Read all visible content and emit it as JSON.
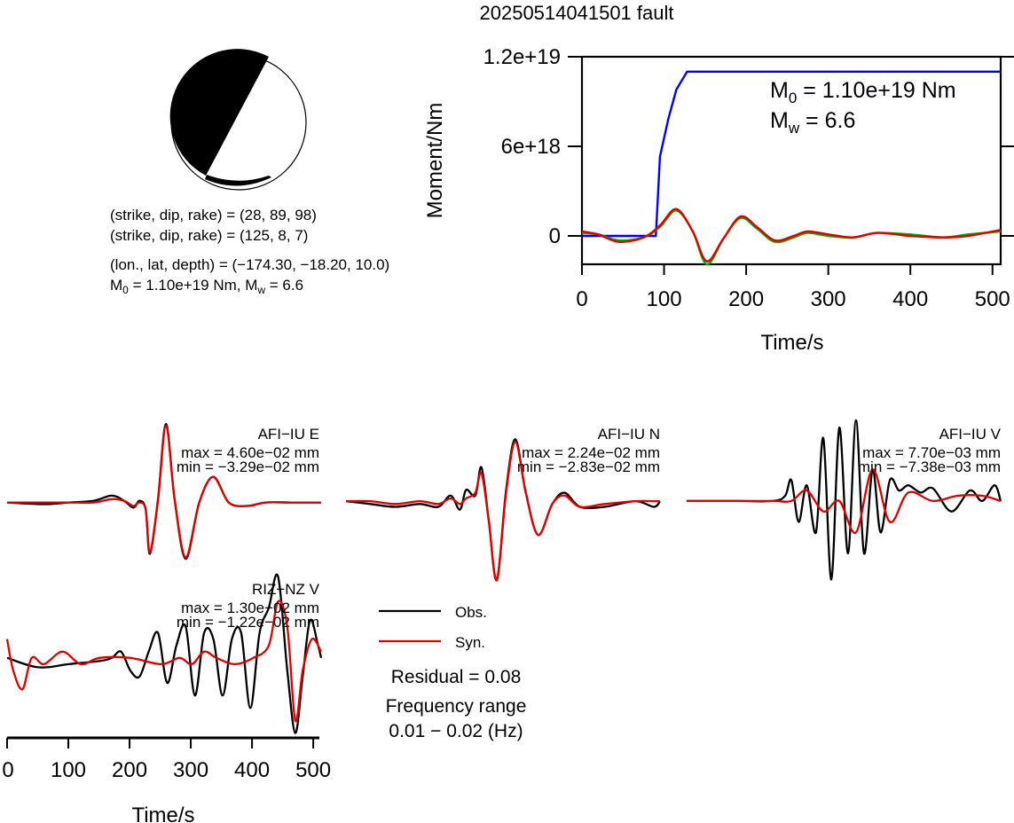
{
  "title": "20250514041501 fault",
  "colors": {
    "observed": "#000000",
    "synthetic": "#e00000",
    "moment_cumulative": "#0000ff",
    "moment_rate_alt": "#00b000",
    "mechanism_fill": "#000000",
    "mechanism_bg": "#ffffff"
  },
  "focal_mechanism": {
    "plane1": "(strike, dip, rake) = (28, 89, 98)",
    "plane2": "(strike, dip, rake) = (125, 8, 7)",
    "location": "(lon., lat, depth) = (−174.30, −18.20, 10.0)",
    "moment_prefix": "M",
    "moment_sub": "0",
    "moment_value": " = 1.10e+19 Nm, M",
    "mw_sub": "w",
    "mw_value": " = 6.6"
  },
  "moment_panel": {
    "ylabel": "Moment/Nm",
    "xlabel": "Time/s",
    "m0_prefix": "M",
    "m0_sub": "0",
    "m0_value": " = 1.10e+19 Nm",
    "mw_prefix": "M",
    "mw_sub": "w",
    "mw_value": " = 6.6",
    "y_ticks": [
      "1.2e+19",
      "6e+18",
      "0"
    ],
    "x_ticks": [
      "0",
      "100",
      "200",
      "300",
      "400",
      "500"
    ]
  },
  "waveform_panels": {
    "xlabel": "Time/s",
    "x_ticks": [
      "0",
      "100",
      "200",
      "300",
      "400",
      "500"
    ]
  },
  "legend": {
    "obs": "Obs.",
    "syn": "Syn.",
    "residual": "Residual = 0.08",
    "freq_label": "Frequency range",
    "freq_value": "0.01 − 0.02 (Hz)"
  },
  "chart_data": [
    {
      "type": "line",
      "panel": "moment",
      "xlabel": "Time/s",
      "ylabel": "Moment/Nm",
      "xlim": [
        0,
        510
      ],
      "ylim": [
        -1.9e+18,
        1.21e+19
      ],
      "series": [
        {
          "role": "cumulative moment",
          "color": "#0000ff",
          "x": [
            0,
            90,
            95,
            105,
            115,
            128,
            510
          ],
          "y": [
            0,
            0,
            5.3e+18,
            7.8e+18,
            9.8e+18,
            1.1e+19,
            1.1e+19
          ]
        },
        {
          "role": "moment rate (alt)",
          "color": "#00b000",
          "x": [
            0,
            20,
            45,
            75,
            95,
            115,
            135,
            152,
            172,
            193,
            213,
            235,
            258,
            275,
            300,
            330,
            360,
            400,
            440,
            470,
            510
          ],
          "y": [
            2e+17,
            1e+17,
            -3e+17,
            -1e+17,
            6e+17,
            1.7e+18,
            3e+17,
            -1.9e+18,
            -2e+17,
            1.2e+18,
            5e+17,
            -4e+17,
            -1e+17,
            2e+17,
            0,
            -1e+17,
            2e+17,
            1e+17,
            -1e+17,
            1e+17,
            3e+17
          ]
        },
        {
          "role": "moment rate",
          "color": "#e00000",
          "x": [
            0,
            20,
            45,
            75,
            95,
            115,
            135,
            152,
            172,
            193,
            213,
            235,
            258,
            275,
            300,
            330,
            360,
            400,
            440,
            470,
            510
          ],
          "y": [
            3e+17,
            1e+17,
            -4e+17,
            -1e+17,
            7e+17,
            1.8e+18,
            3e+17,
            -1.7e+18,
            -2e+17,
            1.3e+18,
            6e+17,
            -3e+17,
            0,
            3e+17,
            1e+17,
            -1e+17,
            2e+17,
            0,
            -1e+17,
            0,
            4e+17
          ]
        }
      ]
    },
    {
      "type": "line",
      "panel": "AFI-IU E",
      "station": "AFI−IU E",
      "max": "max = 4.60e−02 mm",
      "min": "min = −3.29e−02 mm",
      "xlim": [
        0,
        510
      ],
      "ylim": [
        -0.0329,
        0.046
      ],
      "series": [
        {
          "name": "Obs.",
          "x": [
            0,
            60,
            100,
            140,
            170,
            190,
            205,
            215,
            225,
            232,
            245,
            258,
            272,
            290,
            312,
            335,
            360,
            390,
            420,
            460,
            510
          ],
          "y": [
            0,
            -0.001,
            0,
            0.001,
            0.004,
            0.001,
            -0.003,
            0.001,
            -0.004,
            -0.03,
            0.002,
            0.046,
            0.002,
            -0.033,
            0,
            0.015,
            0,
            -0.002,
            0,
            0,
            0
          ]
        },
        {
          "name": "Syn.",
          "x": [
            0,
            60,
            100,
            140,
            170,
            190,
            205,
            215,
            225,
            232,
            245,
            258,
            272,
            290,
            312,
            335,
            360,
            390,
            420,
            460,
            510
          ],
          "y": [
            0,
            0,
            0,
            0,
            0.002,
            0.001,
            -0.002,
            0,
            -0.004,
            -0.029,
            0.001,
            0.045,
            0.002,
            -0.032,
            0,
            0.015,
            0,
            -0.002,
            0,
            0,
            0
          ]
        }
      ]
    },
    {
      "type": "line",
      "panel": "AFI-IU N",
      "station": "AFI−IU N",
      "max": "max = 2.24e−02 mm",
      "min": "min = −2.83e−02 mm",
      "xlim": [
        0,
        510
      ],
      "ylim": [
        -0.0283,
        0.0224
      ],
      "series": [
        {
          "name": "Obs.",
          "x": [
            0,
            40,
            80,
            120,
            150,
            170,
            185,
            195,
            210,
            220,
            232,
            245,
            260,
            275,
            292,
            312,
            335,
            355,
            380,
            420,
            470,
            500,
            510
          ],
          "y": [
            0,
            -0.001,
            -0.002,
            -0.001,
            -0.002,
            0.002,
            -0.003,
            0.004,
            0.002,
            0.012,
            -0.007,
            -0.028,
            0.004,
            0.022,
            0.003,
            -0.012,
            -0.001,
            0.003,
            -0.002,
            -0.002,
            0,
            -0.002,
            0
          ]
        },
        {
          "name": "Syn.",
          "x": [
            0,
            40,
            80,
            120,
            150,
            170,
            185,
            195,
            210,
            220,
            232,
            245,
            260,
            275,
            292,
            312,
            335,
            355,
            380,
            420,
            470,
            500,
            510
          ],
          "y": [
            0,
            0,
            -0.001,
            0,
            -0.001,
            0.001,
            -0.001,
            0.001,
            0.003,
            0.01,
            -0.007,
            -0.028,
            0.003,
            0.021,
            0.003,
            -0.012,
            -0.001,
            0.002,
            -0.002,
            -0.001,
            0,
            0,
            0
          ]
        }
      ]
    },
    {
      "type": "line",
      "panel": "AFI-IU V",
      "station": "AFI−IU V",
      "max": "max = 7.70e−03 mm",
      "min": "min = −7.38e−03 mm",
      "xlim": [
        0,
        510
      ],
      "ylim": [
        -0.00738,
        0.0077
      ],
      "series": [
        {
          "name": "Obs.",
          "x": [
            0,
            80,
            140,
            160,
            170,
            182,
            195,
            210,
            222,
            235,
            248,
            262,
            275,
            288,
            302,
            315,
            330,
            345,
            360,
            380,
            400,
            430,
            460,
            480,
            500,
            510
          ],
          "y": [
            0,
            0,
            0,
            0.0005,
            0.002,
            -0.002,
            0.0015,
            -0.003,
            0.006,
            -0.0075,
            0.007,
            -0.005,
            0.0077,
            -0.005,
            0.003,
            -0.003,
            0.002,
            0.001,
            0.0015,
            0.0008,
            0.0012,
            -0.001,
            0.001,
            0,
            0.0015,
            0
          ]
        },
        {
          "name": "Syn.",
          "x": [
            0,
            80,
            140,
            170,
            195,
            222,
            248,
            275,
            302,
            330,
            360,
            400,
            440,
            480,
            510
          ],
          "y": [
            0,
            0,
            0,
            0,
            0.001,
            -0.001,
            0,
            -0.003,
            0.003,
            -0.002,
            0.0008,
            0,
            0.0005,
            0.0005,
            0
          ]
        }
      ]
    },
    {
      "type": "line",
      "panel": "RIZ-NZ V",
      "station": "RIZ−NZ V",
      "max": "max = 1.30e−02 mm",
      "min": "min = −1.22e−02 mm",
      "xlim": [
        0,
        510
      ],
      "ylim": [
        -0.0122,
        0.013
      ],
      "series": [
        {
          "name": "Obs.",
          "x": [
            0,
            50,
            100,
            150,
            170,
            185,
            200,
            215,
            230,
            245,
            260,
            275,
            290,
            305,
            320,
            335,
            350,
            365,
            380,
            395,
            410,
            425,
            440,
            455,
            468,
            480,
            492,
            505,
            510
          ],
          "y": [
            0,
            -0.0015,
            -0.001,
            -0.0005,
            0,
            0.001,
            -0.002,
            -0.003,
            0.001,
            0.004,
            -0.004,
            0.002,
            0.005,
            -0.006,
            0.004,
            0.003,
            -0.006,
            0.003,
            0.004,
            -0.008,
            0.004,
            0.008,
            0.013,
            -0.002,
            -0.012,
            -0.003,
            0.006,
            0.002,
            0
          ]
        },
        {
          "name": "Syn.",
          "x": [
            0,
            10,
            25,
            40,
            60,
            90,
            120,
            150,
            200,
            250,
            280,
            300,
            320,
            340,
            370,
            400,
            425,
            440,
            455,
            468,
            480,
            495,
            510
          ],
          "y": [
            0.003,
            -0.002,
            -0.005,
            0,
            -0.001,
            0.001,
            -0.001,
            0,
            0,
            -0.001,
            0,
            -0.001,
            0.001,
            0,
            -0.001,
            0,
            0.002,
            0.009,
            0.005,
            -0.01,
            -0.002,
            0.003,
            0.001
          ]
        }
      ]
    }
  ]
}
